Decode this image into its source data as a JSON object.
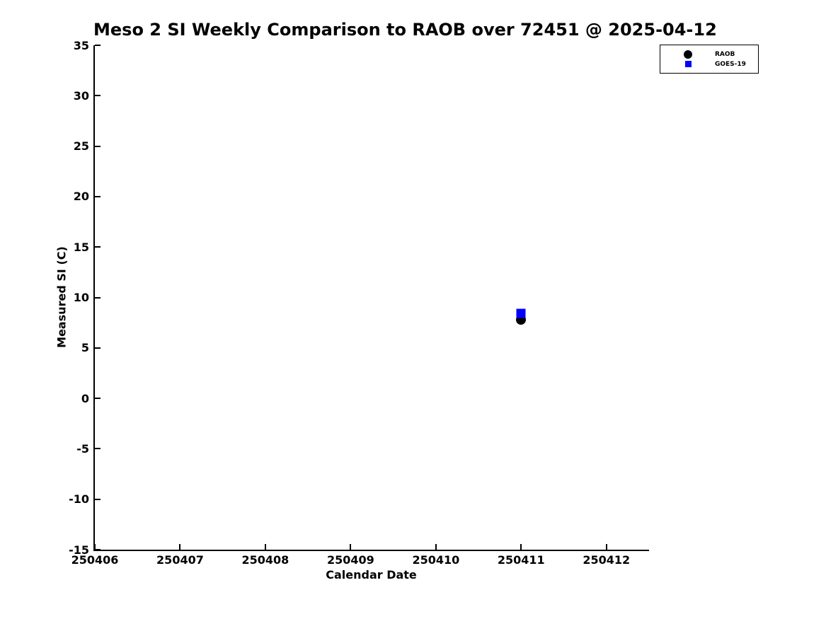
{
  "chart_data": {
    "type": "scatter",
    "title": "Meso 2 SI Weekly Comparison to RAOB over 72451 @ 2025-04-12",
    "xlabel": "Calendar Date",
    "ylabel": "Measured SI (C)",
    "xlim": [
      250406,
      250412.5
    ],
    "ylim": [
      -15,
      35
    ],
    "xticks": [
      250406,
      250407,
      250408,
      250409,
      250410,
      250411,
      250412
    ],
    "yticks": [
      35,
      30,
      25,
      20,
      15,
      10,
      5,
      0,
      -5,
      -10,
      -15
    ],
    "grid": false,
    "legend_position": "outside-top-right",
    "series": [
      {
        "name": "RAOB",
        "marker": "circle",
        "color": "#000000",
        "points": [
          {
            "x": 250411,
            "y": 7.8
          }
        ]
      },
      {
        "name": "GOES-19",
        "marker": "square",
        "color": "#0000ff",
        "points": [
          {
            "x": 250411,
            "y": 8.4
          }
        ]
      }
    ]
  }
}
